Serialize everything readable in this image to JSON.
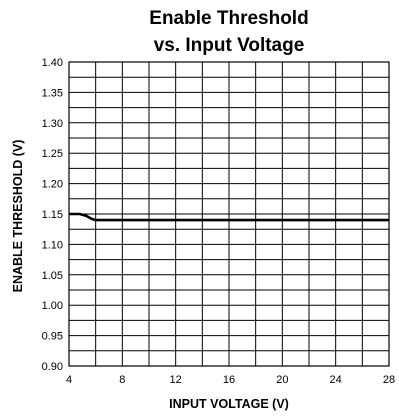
{
  "chart_data": {
    "type": "line",
    "title_line1": "Enable Threshold",
    "title_line2": "vs. Input Voltage",
    "xlabel": "INPUT VOLTAGE (V)",
    "ylabel": "ENABLE THRESHOLD (V)",
    "xlim": [
      4,
      28
    ],
    "ylim": [
      0.9,
      1.4
    ],
    "grid": true,
    "x_ticks": [
      "4",
      "8",
      "12",
      "16",
      "20",
      "24",
      "28"
    ],
    "y_ticks": [
      "0.90",
      "0.95",
      "1.00",
      "1.05",
      "1.10",
      "1.15",
      "1.20",
      "1.25",
      "1.30",
      "1.35",
      "1.40"
    ],
    "series": [
      {
        "x": [
          4.0,
          4.8,
          5.3,
          5.7,
          6.0,
          10,
          16,
          22,
          28
        ],
        "y": [
          1.15,
          1.15,
          1.147,
          1.142,
          1.14,
          1.14,
          1.14,
          1.14,
          1.14
        ]
      }
    ]
  }
}
